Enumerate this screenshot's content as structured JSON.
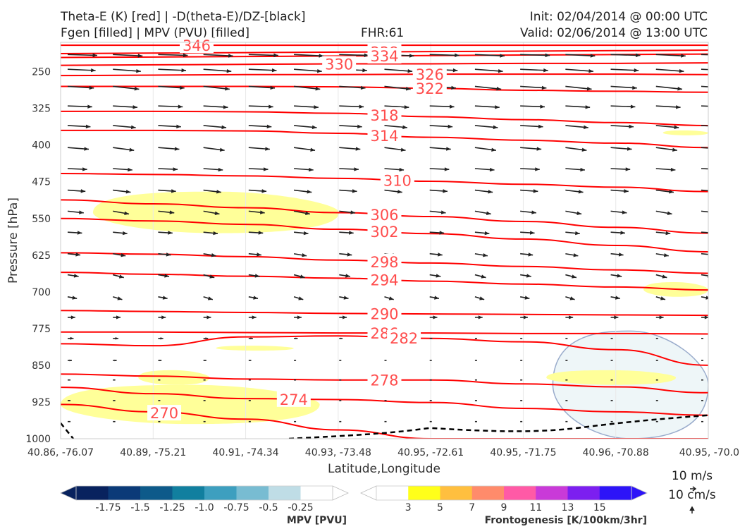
{
  "header": {
    "title_left_1": "Theta-E (K) [red] | -D(theta-E)/DZ-[black]",
    "title_left_2": "Fgen [filled] | MPV (PVU) [filled]",
    "fhr": "FHR:61",
    "init": "Init: 02/04/2014 @ 00:00 UTC",
    "valid": "Valid: 02/06/2014 @ 13:00 UTC"
  },
  "chart_data": {
    "type": "cross-section",
    "ylabel": "Pressure [hPa]",
    "xlabel": "Latitude,Longitude",
    "y_ticks": [
      "250",
      "325",
      "400",
      "475",
      "550",
      "625",
      "700",
      "775",
      "850",
      "925",
      "1000"
    ],
    "x_ticks": [
      "40.86, -76.07",
      "40.89, -75.21",
      "40.91, -74.34",
      "40.93, -73.48",
      "40.95, -72.61",
      "40.95, -71.75",
      "40.96, -70.88",
      "40.95, -70.0"
    ],
    "ylim": [
      1000,
      190
    ],
    "y_scale": "linear, inverted",
    "theta_e_contours": {
      "color": "#ff0000",
      "levels": [
        {
          "value": 346,
          "p": [
            196,
            196,
            196,
            196,
            196,
            196,
            196,
            196
          ]
        },
        {
          "value": 338,
          "p": [
            213,
            212,
            211,
            210,
            209,
            208,
            207,
            206
          ]
        },
        {
          "value": 334,
          "p": [
            221,
            220,
            219,
            218,
            217,
            216,
            215,
            214
          ]
        },
        {
          "value": 330,
          "p": [
            237,
            236,
            235,
            234,
            234,
            233,
            233,
            232
          ]
        },
        {
          "value": 326,
          "p": [
            258,
            257,
            256,
            256,
            255,
            255,
            255,
            256
          ]
        },
        {
          "value": 322,
          "p": [
            280,
            280,
            280,
            281,
            284,
            288,
            290,
            292
          ]
        },
        {
          "value": 318,
          "p": [
            331,
            331,
            332,
            335,
            342,
            348,
            354,
            360
          ]
        },
        {
          "value": 314,
          "p": [
            370,
            370,
            371,
            376,
            384,
            390,
            396,
            405
          ]
        },
        {
          "value": 310,
          "p": [
            458,
            460,
            463,
            468,
            474,
            480,
            486,
            495
          ]
        },
        {
          "value": 306,
          "p": [
            512,
            520,
            528,
            538,
            546,
            556,
            568,
            580
          ]
        },
        {
          "value": 302,
          "p": [
            550,
            555,
            562,
            572,
            581,
            592,
            605,
            618
          ]
        },
        {
          "value": 298,
          "p": [
            620,
            623,
            628,
            635,
            641,
            648,
            655,
            662
          ]
        },
        {
          "value": 294,
          "p": [
            660,
            664,
            668,
            672,
            678,
            684,
            690,
            696
          ]
        },
        {
          "value": 290,
          "p": [
            738,
            740,
            742,
            744,
            745,
            746,
            747,
            748
          ]
        },
        {
          "value": 286,
          "p": [
            782,
            782,
            783,
            784,
            784,
            785,
            785,
            786
          ]
        },
        {
          "value": 282,
          "p": [
            806,
            810,
            792,
            790,
            795,
            802,
            818,
            850
          ]
        },
        {
          "value": 278,
          "p": [
            868,
            872,
            878,
            880,
            880,
            888,
            894,
            906
          ]
        },
        {
          "value": 274,
          "p": [
            895,
            908,
            918,
            920,
            926,
            938,
            945,
            952
          ]
        },
        {
          "value": 270,
          "p": [
            930,
            945,
            960,
            982,
            1000,
            1000,
            1000,
            1000
          ]
        }
      ]
    },
    "stability_zero_line": {
      "color": "#000000",
      "style": "dashed"
    },
    "fgen_regions": [
      {
        "level": 3,
        "color": "#ffff99",
        "x": [
          0.05,
          0.43
        ],
        "p": [
          495,
          580
        ]
      },
      {
        "level": 3,
        "color": "#ffff99",
        "x": [
          0.9,
          1.0
        ],
        "p": [
          680,
          710
        ]
      },
      {
        "level": 3,
        "color": "#ffff99",
        "x": [
          0.12,
          0.23
        ],
        "p": [
          860,
          890
        ]
      },
      {
        "level": 3,
        "color": "#ffff99",
        "x": [
          0.24,
          0.36
        ],
        "p": [
          810,
          820
        ]
      },
      {
        "level": 3,
        "color": "#ffff99",
        "x": [
          0.75,
          0.95
        ],
        "p": [
          860,
          890
        ]
      },
      {
        "level": 3,
        "color": "#ffff99",
        "x": [
          0.0,
          0.4
        ],
        "p": [
          890,
          970
        ]
      },
      {
        "level": 3,
        "color": "#ffff99",
        "x": [
          0.93,
          1.0
        ],
        "p": [
          370,
          380
        ]
      }
    ],
    "mpv_regions": [
      {
        "level": -0.25,
        "color": "#eef6f8",
        "x": [
          0.76,
          1.0
        ],
        "p": [
          780,
          1000
        ]
      }
    ],
    "wind_scale": {
      "horizontal": "10 m/s",
      "vertical": "10 cm/s"
    },
    "colorbars": [
      {
        "label": "MPV [PVU]",
        "ticks": [
          "-1.75",
          "-1.5",
          "-1.25",
          "-1.0",
          "-0.75",
          "-0.5",
          "-0.25"
        ],
        "colors": [
          "#08225e",
          "#0b3a78",
          "#0d5a8a",
          "#117f9f",
          "#3d9fbf",
          "#78bcd2",
          "#bfdde6",
          "#ffffff"
        ]
      },
      {
        "label": "Frontogenesis [K/100km/3hr]",
        "ticks": [
          "3",
          "5",
          "7",
          "9",
          "11",
          "13",
          "15"
        ],
        "colors": [
          "#ffffff",
          "#ffff1a",
          "#ffbf3f",
          "#ff8b6b",
          "#ff5aa6",
          "#c93ad8",
          "#7c1ff0",
          "#2d14f8"
        ]
      }
    ]
  }
}
